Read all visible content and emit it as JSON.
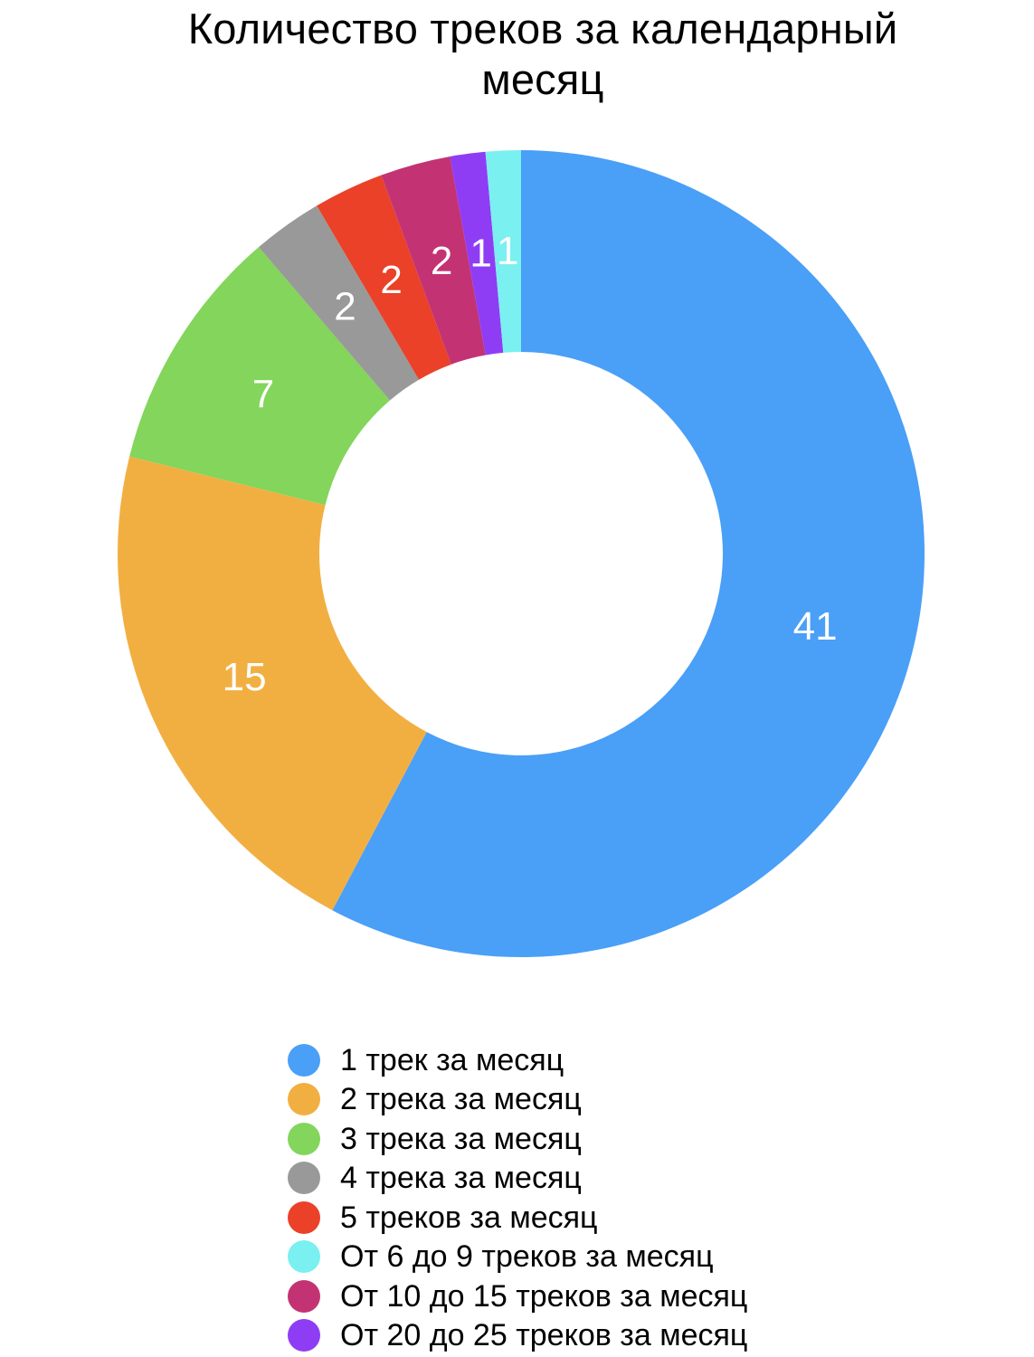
{
  "chart_data": {
    "type": "pie",
    "variant": "donut",
    "title": "Количество треков за календарный месяц",
    "title_lines": [
      "Количество треков за календарный",
      "месяц"
    ],
    "start_angle_deg": 0,
    "direction": "clockwise",
    "legend_position": "bottom",
    "slices": [
      {
        "name": "1 трек за месяц",
        "value": 41,
        "label": "41",
        "color": "#4A9FF7"
      },
      {
        "name": "2 трека за месяц",
        "value": 15,
        "label": "15",
        "color": "#F2AF41"
      },
      {
        "name": "3 трека за месяц",
        "value": 7,
        "label": "7",
        "color": "#83D55B"
      },
      {
        "name": "4 трека за месяц",
        "value": 2,
        "label": "2",
        "color": "#999999"
      },
      {
        "name": "5 треков за месяц",
        "value": 2,
        "label": "2",
        "color": "#EA4128"
      },
      {
        "name": "От 10 до 15 треков за месяц",
        "value": 2,
        "label": "2",
        "color": "#C33373"
      },
      {
        "name": "От 20 до 25 треков за месяц",
        "value": 1,
        "label": "1",
        "color": "#8E3DF5"
      },
      {
        "name": "От 6 до 9 треков за месяц",
        "value": 1,
        "label": "1",
        "color": "#7AF0F0"
      }
    ],
    "legend": [
      {
        "label": "1 трек за месяц",
        "color": "#4A9FF7"
      },
      {
        "label": "2 трека за месяц",
        "color": "#F2AF41"
      },
      {
        "label": "3 трека за месяц",
        "color": "#83D55B"
      },
      {
        "label": "4 трека за месяц",
        "color": "#999999"
      },
      {
        "label": "5 треков за месяц",
        "color": "#EA4128"
      },
      {
        "label": "От 6 до 9 треков за месяц",
        "color": "#7AF0F0"
      },
      {
        "label": "От 10 до 15 треков за месяц",
        "color": "#C33373"
      },
      {
        "label": "От 20 до 25 треков за месяц",
        "color": "#8E3DF5"
      }
    ]
  }
}
